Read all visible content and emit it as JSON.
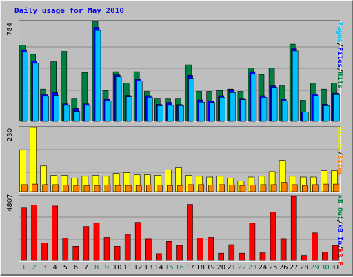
{
  "title": "Daily usage for May 2010",
  "colors": {
    "pages": "#00c0ff",
    "files": "#0000ff",
    "hits": "#008040",
    "visits": "#ffff00",
    "sites": "#ff8000",
    "kbf": "#ff0000",
    "weekday_label": "#000000",
    "weekend_label": "#00805c"
  },
  "legend": {
    "top": {
      "pages": "Pages",
      "sep1": "/",
      "files": "Files",
      "sep2": "/",
      "hits": "Hits"
    },
    "middle": {
      "visits": "Visits",
      "sep1": "/",
      "sites": "Sites"
    },
    "bottom": {
      "kbout": "kB Out",
      "sep1": "/",
      "kbin": "kB In",
      "sep2": "/",
      "kbf": "kB F"
    }
  },
  "chart_data": [
    {
      "type": "bar",
      "panel": "hits",
      "ymax_label": "784",
      "ylim": [
        0,
        784
      ],
      "categories": [
        "1",
        "2",
        "3",
        "4",
        "5",
        "6",
        "7",
        "8",
        "9",
        "10",
        "11",
        "12",
        "13",
        "14",
        "15",
        "16",
        "17",
        "18",
        "19",
        "20",
        "21",
        "22",
        "23",
        "24",
        "25",
        "26",
        "27",
        "28",
        "29",
        "30",
        "31"
      ],
      "weekend": [
        1,
        2,
        8,
        9,
        15,
        16,
        22,
        23,
        29,
        30
      ],
      "series": [
        {
          "name": "Hits",
          "key": "hits",
          "values": [
            598,
            525,
            253,
            467,
            548,
            180,
            383,
            784,
            241,
            389,
            300,
            389,
            235,
            180,
            180,
            180,
            443,
            235,
            235,
            241,
            253,
            235,
            420,
            367,
            420,
            278,
            605,
            165,
            300,
            253,
            300
          ]
        },
        {
          "name": "Files",
          "key": "files",
          "values": [
            562,
            474,
            208,
            225,
            137,
            100,
            137,
            738,
            172,
            364,
            203,
            329,
            200,
            133,
            147,
            131,
            360,
            167,
            160,
            200,
            250,
            180,
            389,
            200,
            278,
            172,
            570,
            72,
            214,
            133,
            221
          ]
        },
        {
          "name": "Pages",
          "key": "pages",
          "values": [
            545,
            455,
            196,
            203,
            125,
            78,
            125,
            713,
            160,
            348,
            191,
            316,
            187,
            122,
            125,
            122,
            336,
            150,
            147,
            187,
            225,
            170,
            370,
            187,
            267,
            160,
            552,
            72,
            200,
            122,
            209
          ]
        }
      ]
    },
    {
      "type": "bar",
      "panel": "sites",
      "ymax_label": "230",
      "ylim": [
        0,
        230
      ],
      "categories": [
        "1",
        "2",
        "3",
        "4",
        "5",
        "6",
        "7",
        "8",
        "9",
        "10",
        "11",
        "12",
        "13",
        "14",
        "15",
        "16",
        "17",
        "18",
        "19",
        "20",
        "21",
        "22",
        "23",
        "24",
        "25",
        "26",
        "27",
        "28",
        "29",
        "30",
        "31"
      ],
      "series": [
        {
          "name": "Visits",
          "key": "visits",
          "values": [
            150,
            230,
            92,
            58,
            58,
            48,
            55,
            58,
            55,
            65,
            68,
            60,
            60,
            58,
            78,
            85,
            58,
            55,
            52,
            55,
            48,
            38,
            52,
            55,
            72,
            112,
            55,
            52,
            52,
            75,
            75
          ]
        },
        {
          "name": "Sites",
          "key": "sites",
          "values": [
            25,
            27,
            25,
            25,
            23,
            22,
            22,
            22,
            23,
            22,
            22,
            22,
            23,
            23,
            22,
            22,
            25,
            25,
            23,
            25,
            23,
            22,
            23,
            25,
            25,
            33,
            25,
            22,
            25,
            27,
            27
          ]
        }
      ]
    },
    {
      "type": "bar",
      "panel": "kb",
      "ymax_label": "4807",
      "ylim": [
        0,
        4807
      ],
      "categories": [
        "1",
        "2",
        "3",
        "4",
        "5",
        "6",
        "7",
        "8",
        "9",
        "10",
        "11",
        "12",
        "13",
        "14",
        "15",
        "16",
        "17",
        "18",
        "19",
        "20",
        "21",
        "22",
        "23",
        "24",
        "25",
        "26",
        "27",
        "28",
        "29",
        "30",
        "31"
      ],
      "series": [
        {
          "name": "kB F",
          "key": "kbf",
          "values": [
            3940,
            4150,
            1310,
            4090,
            1670,
            1070,
            2550,
            2800,
            1730,
            1070,
            1970,
            2860,
            1610,
            520,
            1430,
            1130,
            4210,
            1670,
            1730,
            560,
            1190,
            560,
            2800,
            590,
            3640,
            1610,
            4807,
            380,
            2080,
            630,
            1130
          ]
        }
      ]
    }
  ]
}
